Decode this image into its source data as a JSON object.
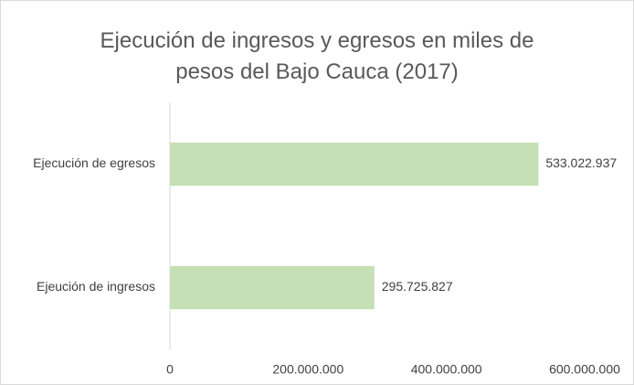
{
  "chart_data": {
    "type": "bar",
    "orientation": "horizontal",
    "title": "Ejecución de ingresos y egresos en miles de pesos del Bajo Cauca (2017)",
    "categories": [
      "Ejecución de egresos",
      "Ejeución de ingresos"
    ],
    "values": [
      533022937,
      295725827
    ],
    "value_labels": [
      "533.022.937",
      "295.725.827"
    ],
    "color": "#c5e0b4",
    "xlim": [
      0,
      600000000
    ],
    "xticks": [
      0,
      {
        "value": 200000000,
        "label": "200.000.000"
      },
      {
        "value": 400000000,
        "label": "400.000.000"
      },
      {
        "value": 600000000,
        "label": "600.000.000"
      }
    ],
    "grid": false
  }
}
